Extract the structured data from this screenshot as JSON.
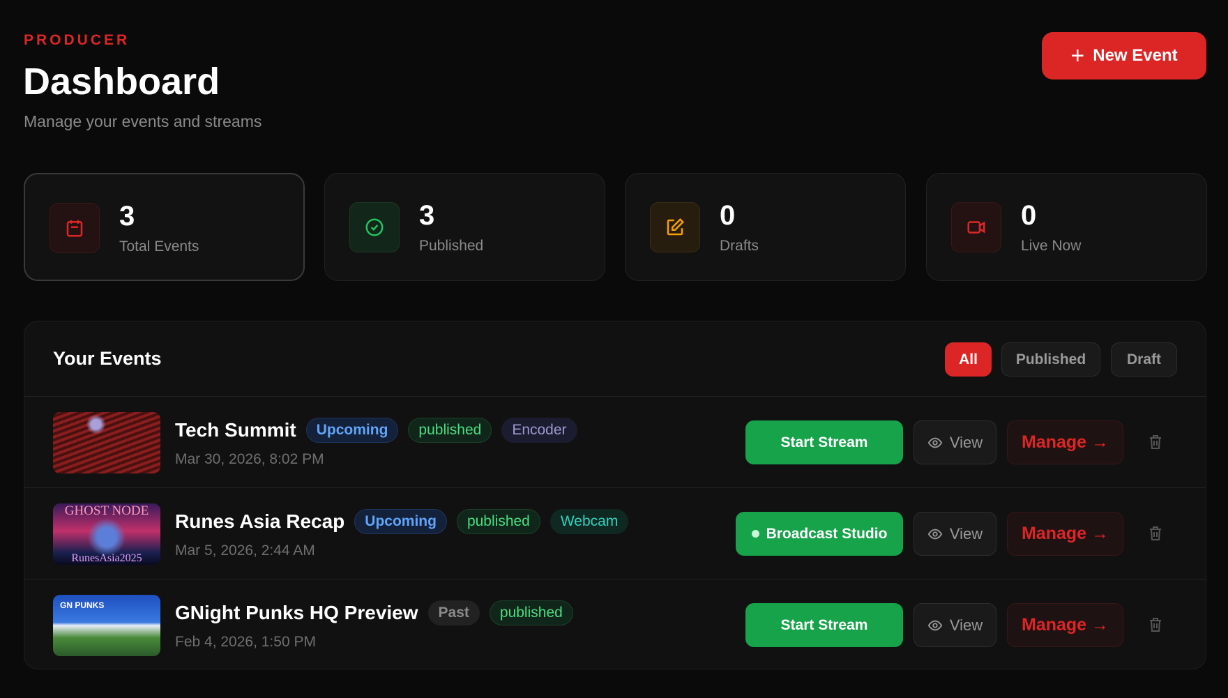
{
  "header": {
    "eyebrow": "PRODUCER",
    "title": "Dashboard",
    "subtitle": "Manage your events and streams",
    "new_event_label": "New Event"
  },
  "stats": [
    {
      "value": "3",
      "label": "Total Events",
      "icon": "calendar-icon",
      "color": "#dc2626"
    },
    {
      "value": "3",
      "label": "Published",
      "icon": "check-circle-icon",
      "color": "#22c55e"
    },
    {
      "value": "0",
      "label": "Drafts",
      "icon": "edit-icon",
      "color": "#f59e0b"
    },
    {
      "value": "0",
      "label": "Live Now",
      "icon": "video-icon",
      "color": "#dc2626"
    }
  ],
  "events_panel": {
    "title": "Your Events",
    "filters": [
      {
        "label": "All",
        "active": true
      },
      {
        "label": "Published",
        "active": false
      },
      {
        "label": "Draft",
        "active": false
      }
    ],
    "events": [
      {
        "title": "Tech Summit",
        "date": "Mar 30, 2026, 8:02 PM",
        "badges": [
          "Upcoming",
          "published",
          "Encoder"
        ],
        "primary_action": "Start Stream"
      },
      {
        "title": "Runes Asia Recap",
        "date": "Mar 5, 2026, 2:44 AM",
        "badges": [
          "Upcoming",
          "published",
          "Webcam"
        ],
        "primary_action": "Broadcast Studio",
        "thumbnail_text": [
          "GHOST NODE",
          "RunesAsia2025"
        ]
      },
      {
        "title": "GNight Punks HQ Preview",
        "date": "Feb 4, 2026, 1:50 PM",
        "badges": [
          "Past",
          "published"
        ],
        "primary_action": "Start Stream",
        "thumbnail_text": [
          "GN PUNKS"
        ]
      }
    ],
    "view_label": "View",
    "manage_label": "Manage →"
  }
}
